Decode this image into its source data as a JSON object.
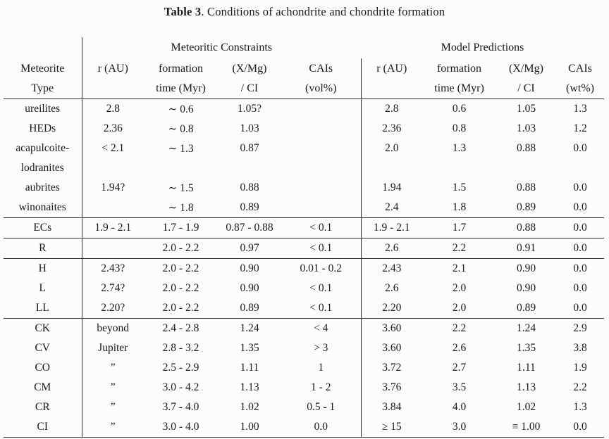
{
  "page": {
    "background": "#fcfcfc",
    "text_color": "#1a1a1a",
    "rule_color": "#2e2e2e"
  },
  "title": {
    "bold": "Table 3",
    "rest": ". Conditions of achondrite and chondrite formation"
  },
  "table": {
    "group_headers": {
      "left": "Meteoritic Constraints",
      "right": "Model Predictions"
    },
    "col_headers_line1": [
      "Meteorite",
      "r (AU)",
      "formation",
      "(X/Mg)",
      "CAIs",
      "r (AU)",
      "formation",
      "(X/Mg)",
      "CAIs"
    ],
    "col_headers_line2": [
      "Type",
      "",
      "time (Myr)",
      "/ CI",
      "(vol%)",
      "",
      "time (Myr)",
      "/ CI",
      "(wt%)"
    ],
    "rows": [
      {
        "rule_above": false,
        "cells": [
          "ureilites",
          "2.8",
          "∼ 0.6",
          "1.05?",
          "",
          "2.8",
          "0.6",
          "1.05",
          "1.3"
        ]
      },
      {
        "rule_above": false,
        "cells": [
          "HEDs",
          "2.36",
          "∼ 0.8",
          "1.03",
          "",
          "2.36",
          "0.8",
          "1.03",
          "1.2"
        ]
      },
      {
        "rule_above": false,
        "cells": [
          "acapulcoite-",
          "< 2.1",
          "∼ 1.3",
          "0.87",
          "",
          "2.0",
          "1.3",
          "0.88",
          "0.0"
        ]
      },
      {
        "rule_above": false,
        "cells": [
          "lodranites",
          "",
          "",
          "",
          "",
          "",
          "",
          "",
          ""
        ]
      },
      {
        "rule_above": false,
        "cells": [
          "aubrites",
          "1.94?",
          "∼ 1.5",
          "0.88",
          "",
          "1.94",
          "1.5",
          "0.88",
          "0.0"
        ]
      },
      {
        "rule_above": false,
        "cells": [
          "winonaites",
          "",
          "∼ 1.8",
          "0.89",
          "",
          "2.4",
          "1.8",
          "0.89",
          "0.0"
        ]
      },
      {
        "rule_above": true,
        "cells": [
          "ECs",
          "1.9 - 2.1",
          "1.7 - 1.9",
          "0.87 - 0.88",
          "< 0.1",
          "1.9 - 2.1",
          "1.7",
          "0.88",
          "0.0"
        ]
      },
      {
        "rule_above": true,
        "cells": [
          "R",
          "",
          "2.0 - 2.2",
          "0.97",
          "< 0.1",
          "2.6",
          "2.2",
          "0.91",
          "0.0"
        ]
      },
      {
        "rule_above": true,
        "cells": [
          "H",
          "2.43?",
          "2.0 - 2.2",
          "0.90",
          "0.01 - 0.2",
          "2.43",
          "2.1",
          "0.90",
          "0.0"
        ]
      },
      {
        "rule_above": false,
        "cells": [
          "L",
          "2.74?",
          "2.0 - 2.2",
          "0.90",
          "< 0.1",
          "2.6",
          "2.0",
          "0.90",
          "0.0"
        ]
      },
      {
        "rule_above": false,
        "cells": [
          "LL",
          "2.20?",
          "2.0 - 2.2",
          "0.89",
          "< 0.1",
          "2.20",
          "2.0",
          "0.89",
          "0.0"
        ]
      },
      {
        "rule_above": true,
        "cells": [
          "CK",
          "beyond",
          "2.4 - 2.8",
          "1.24",
          "< 4",
          "3.60",
          "2.2",
          "1.24",
          "2.9"
        ]
      },
      {
        "rule_above": false,
        "cells": [
          "CV",
          "Jupiter",
          "2.8 - 3.2",
          "1.35",
          "> 3",
          "3.60",
          "2.6",
          "1.35",
          "3.8"
        ]
      },
      {
        "rule_above": false,
        "cells": [
          "CO",
          "”",
          "2.5 - 2.9",
          "1.11",
          "1",
          "3.72",
          "2.7",
          "1.11",
          "1.9"
        ]
      },
      {
        "rule_above": false,
        "cells": [
          "CM",
          "”",
          "3.0 - 4.2",
          "1.13",
          "1 - 2",
          "3.76",
          "3.5",
          "1.13",
          "2.2"
        ]
      },
      {
        "rule_above": false,
        "cells": [
          "CR",
          "”",
          "3.7 - 4.0",
          "1.02",
          "0.5 - 1",
          "3.84",
          "4.0",
          "1.02",
          "1.3"
        ]
      },
      {
        "rule_above": false,
        "cells": [
          "CI",
          "”",
          "3.0 - 4.0",
          "1.00",
          "0.0",
          "≥ 15",
          "3.0",
          "≡ 1.00",
          "0.0"
        ]
      }
    ]
  }
}
